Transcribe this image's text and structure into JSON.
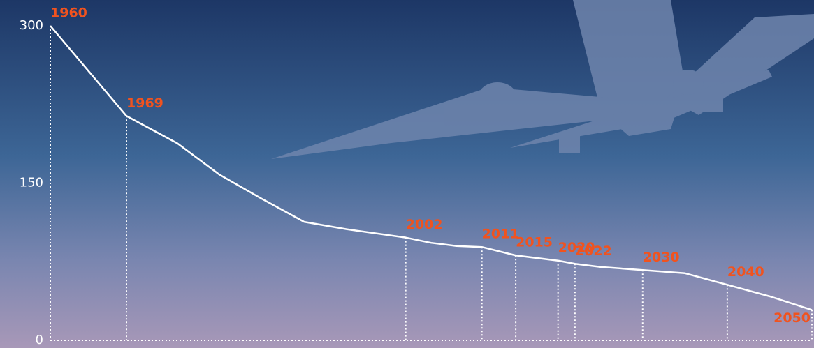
{
  "chart_data": {
    "type": "line",
    "x": [
      1960,
      1969,
      1975,
      1980,
      1985,
      1990,
      1995,
      2002,
      2005,
      2008,
      2011,
      2015,
      2020,
      2022,
      2025,
      2030,
      2035,
      2040,
      2045,
      2050
    ],
    "values": [
      300,
      214,
      188,
      158,
      135,
      113,
      106,
      98,
      93,
      90,
      89,
      81,
      76,
      73,
      70,
      67,
      64,
      53,
      42,
      29
    ],
    "color": "#ffffff",
    "xlim": [
      1960,
      2050
    ],
    "xticks": [
      1960,
      1969,
      2002,
      2011,
      2015,
      2020,
      2022,
      2030,
      2040,
      2050
    ],
    "ylim": [
      0,
      300
    ],
    "yticks": [
      0,
      150,
      300
    ],
    "tick_label_color": "#f0531f",
    "grid": false
  }
}
